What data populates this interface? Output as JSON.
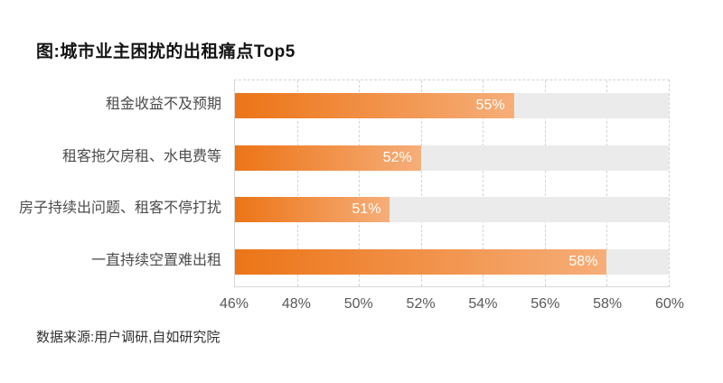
{
  "page": {
    "title": "图:城市业主困扰的出租痛点Top5",
    "source": "数据来源:用户调研,自如研究院"
  },
  "chart_data": {
    "type": "bar",
    "orientation": "horizontal",
    "title": "图:城市业主困扰的出租痛点Top5",
    "categories": [
      "租金收益不及预期",
      "租客拖欠房租、水电费等",
      "房子持续出问题、租客不停打扰",
      "一直持续空置难出租"
    ],
    "values": [
      55,
      52,
      51,
      58
    ],
    "value_labels": [
      "55%",
      "52%",
      "51%",
      "58%"
    ],
    "xlim": [
      46,
      60
    ],
    "x_ticks": [
      "46%",
      "48%",
      "50%",
      "52%",
      "54%",
      "56%",
      "58%",
      "60%"
    ],
    "grid": "dashed-vertical",
    "legend": "none",
    "colors": {
      "bar_gradient_start": "#ec7417",
      "bar_gradient_end": "#f6ae79",
      "track": "#ebebeb",
      "grid": "#d4d4d4",
      "value_label": "#ffffff",
      "category_label": "#4c4c4c",
      "tick_label": "#595959",
      "title": "#141414"
    }
  }
}
